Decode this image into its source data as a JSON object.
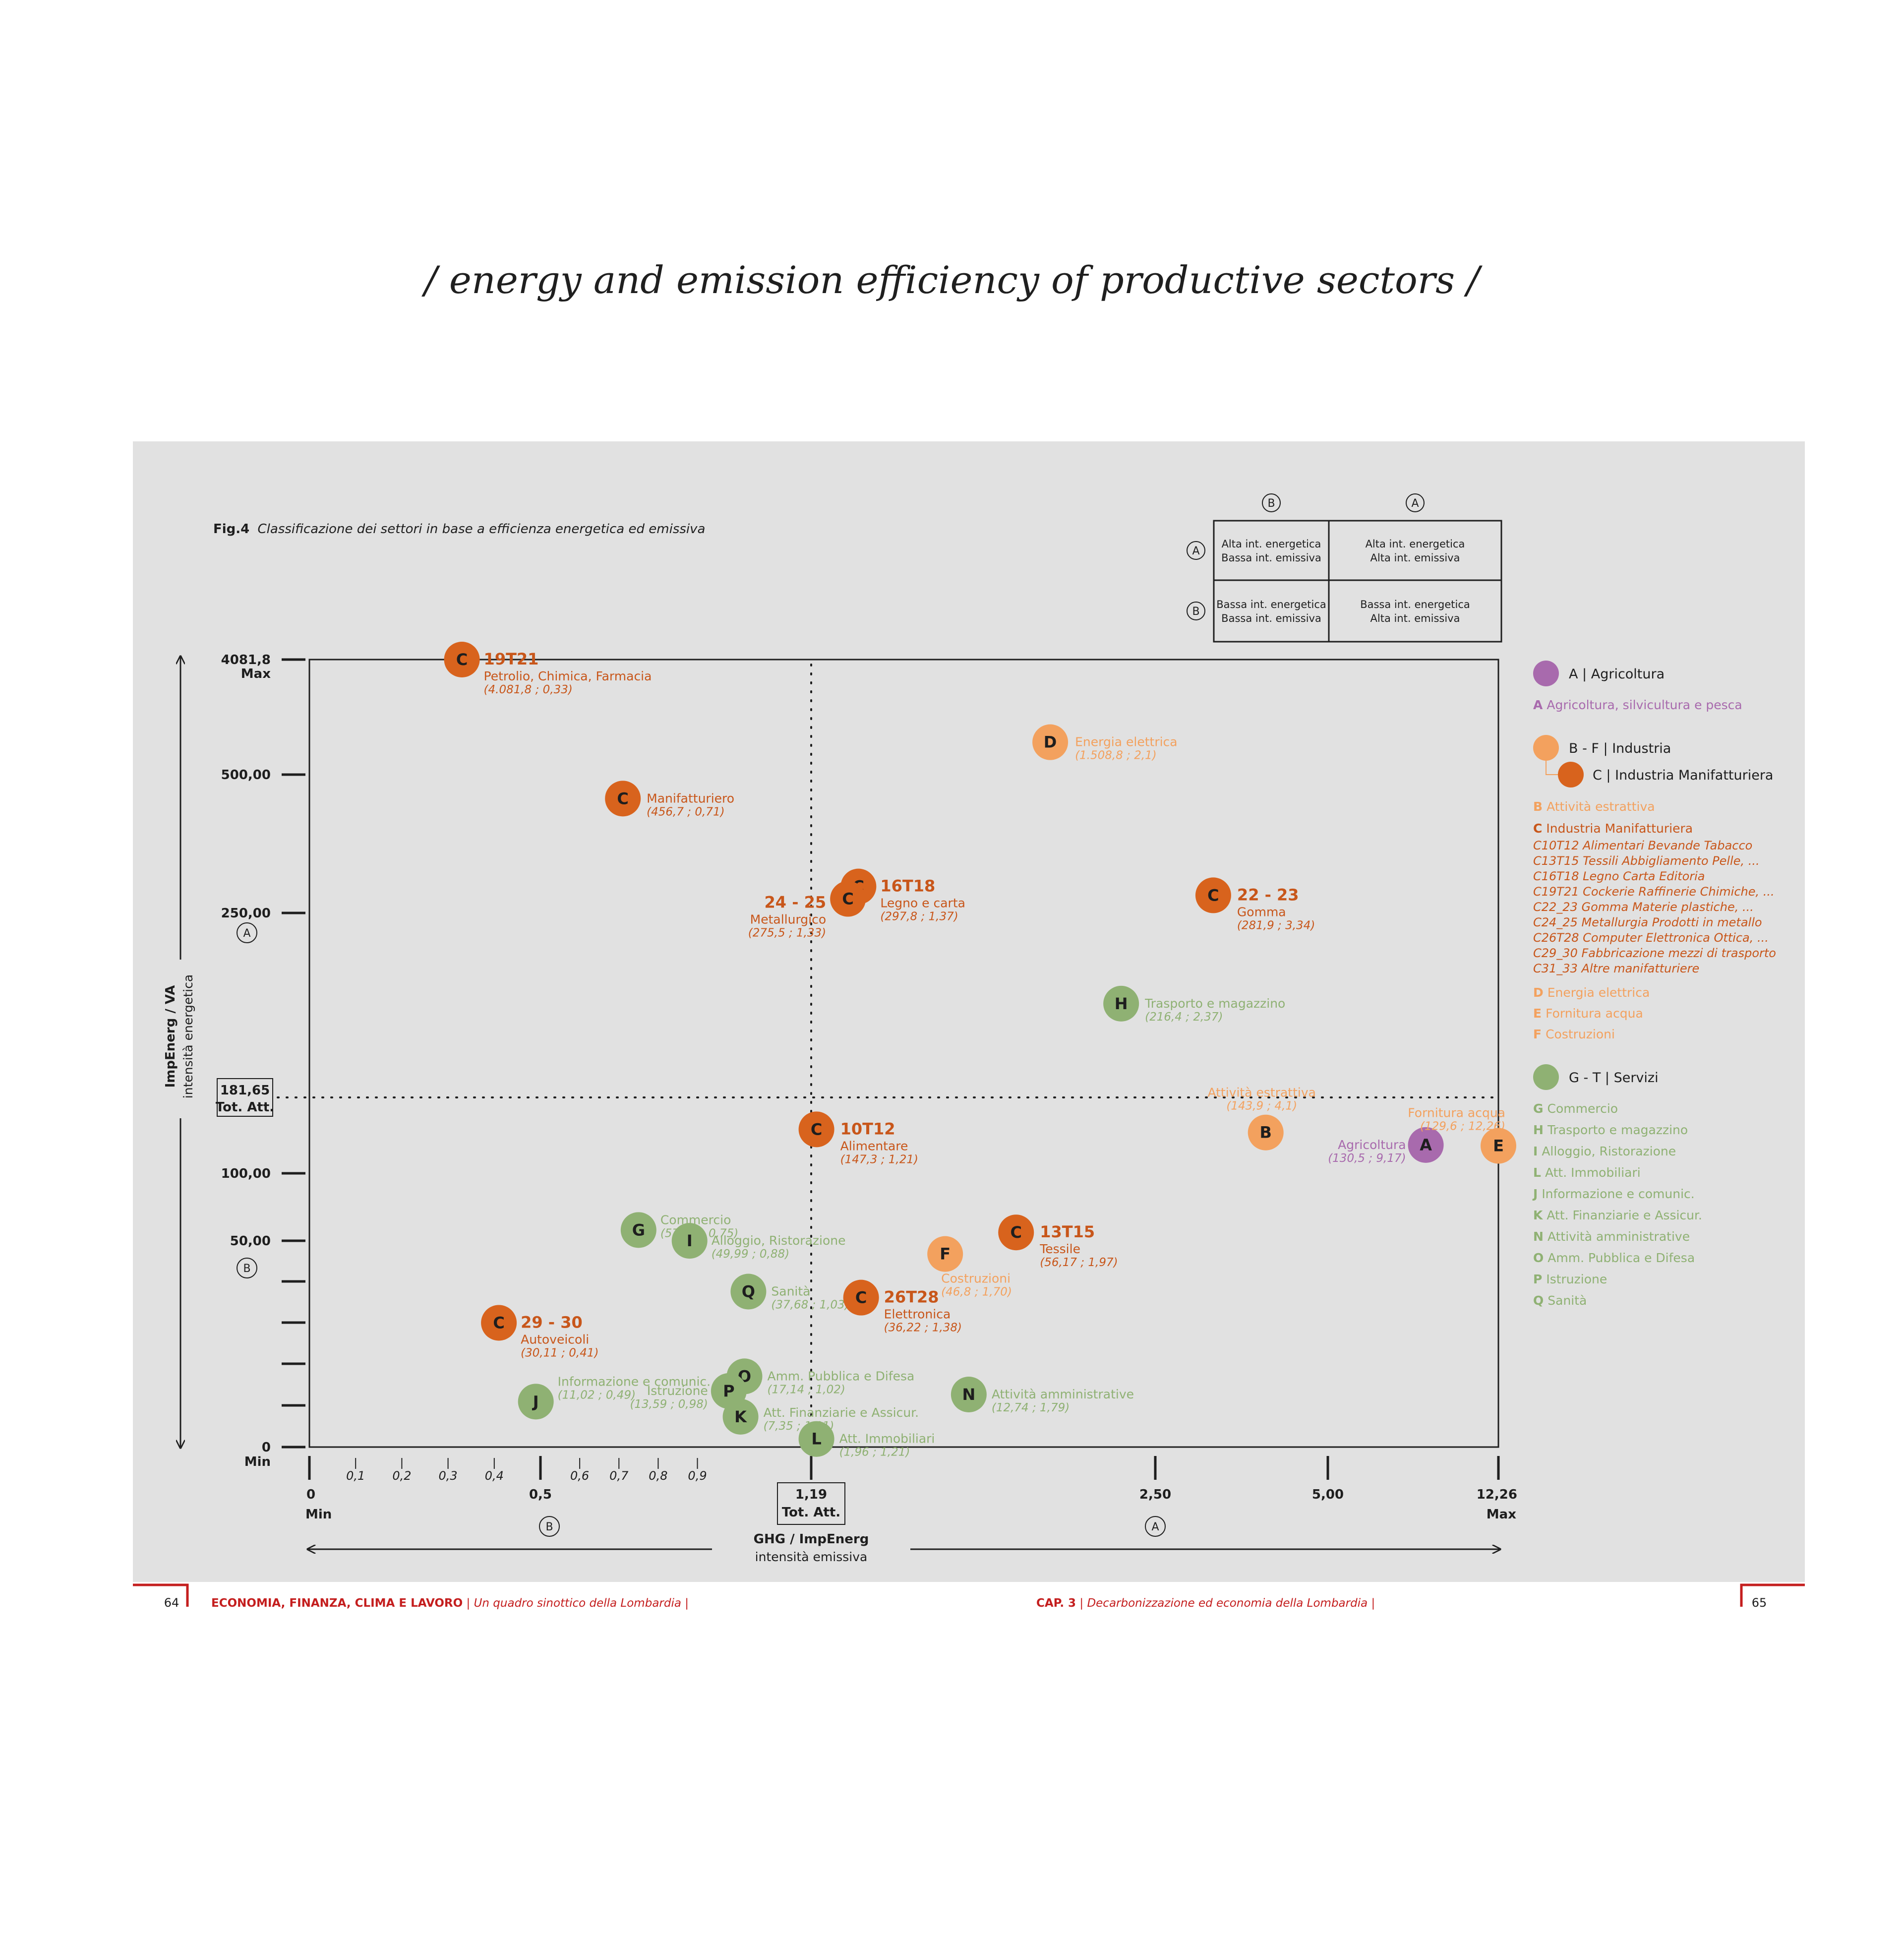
{
  "page": {
    "title": "/ energy and emission efficiency of productive sectors /"
  },
  "figure": {
    "label": "Fig.4",
    "caption": "Classificazione dei settori in base a efficienza energetica ed emissiva"
  },
  "matrix": {
    "col_headers": [
      "B",
      "A"
    ],
    "row_headers": [
      "A",
      "B"
    ],
    "cells": [
      [
        "Alta int. energetica\nBassa int. emissiva",
        "Alta int. energetica\nAlta int. emissiva"
      ],
      [
        "Bassa int. energetica\nBassa int. emissiva",
        "Bassa int. energetica\nAlta int. emissiva"
      ]
    ]
  },
  "y_axis": {
    "ticks": [
      "4081,8",
      "500,00",
      "250,00",
      "181,65",
      "100,00",
      "50,00",
      "0"
    ],
    "max_label": "Max",
    "min_label": "Min",
    "total_label": "Tot. Att.",
    "label": "ImpEnerg / VA",
    "sublabel": "intensità energetica",
    "zone_upper": "A",
    "zone_lower": "B"
  },
  "x_axis": {
    "major_ticks": [
      "0",
      "0,5",
      "1,19",
      "2,50",
      "5,00",
      "12,26"
    ],
    "minor_ticks": [
      "0,1",
      "0,2",
      "0,3",
      "0,4",
      "0,6",
      "0,7",
      "0,8",
      "0,9"
    ],
    "min_label": "Min",
    "max_label": "Max",
    "total_label": "Tot. Att.",
    "label": "GHG / ImpEnerg",
    "sublabel": "intensità emissiva",
    "zone_left": "B",
    "zone_right": "A"
  },
  "legend": {
    "agri_title": "A | Agricoltura",
    "agri_items": [
      {
        "code": "A",
        "text": "Agricoltura, silvicultura e pesca"
      }
    ],
    "ind_title": "B - F | Industria",
    "manuf_title": "C | Industria Manifatturiera",
    "ind_items_top": [
      {
        "code": "B",
        "text": "Attività estrattiva"
      },
      {
        "code": "C",
        "text": "Industria Manifatturiera"
      }
    ],
    "manuf_items": [
      "C10T12 Alimentari Bevande Tabacco",
      "C13T15 Tessili Abbigliamento Pelle, ...",
      "C16T18 Legno Carta Editoria",
      "C19T21 Cockerie Raffinerie Chimiche, ...",
      "C22_23 Gomma Materie plastiche, ...",
      "C24_25 Metallurgia Prodotti in metallo",
      "C26T28 Computer Elettronica Ottica, ...",
      "C29_30 Fabbricazione mezzi di trasporto",
      "C31_33 Altre manifatturiere"
    ],
    "ind_items_bottom": [
      {
        "code": "D",
        "text": "Energia elettrica"
      },
      {
        "code": "E",
        "text": "Fornitura acqua"
      },
      {
        "code": "F",
        "text": "Costruzioni"
      }
    ],
    "serv_title": "G - T | Servizi",
    "serv_items": [
      {
        "code": "G",
        "text": "Commercio"
      },
      {
        "code": "H",
        "text": "Trasporto e magazzino"
      },
      {
        "code": "I",
        "text": "Alloggio, Ristorazione"
      },
      {
        "code": "L",
        "text": "Att. Immobiliari"
      },
      {
        "code": "J",
        "text": "Informazione e comunic."
      },
      {
        "code": "K",
        "text": "Att. Finanziarie e Assicur."
      },
      {
        "code": "N",
        "text": "Attività amministrative"
      },
      {
        "code": "O",
        "text": "Amm. Pubblica e Difesa"
      },
      {
        "code": "P",
        "text": "Istruzione"
      },
      {
        "code": "Q",
        "text": "Sanità"
      }
    ]
  },
  "footer": {
    "page_left": "64",
    "left_bold": "ECONOMIA, FINANZA, CLIMA E LAVORO",
    "left_sep": " | ",
    "left_italic": "Un quadro sinottico della Lombardia",
    "left_end": " |",
    "right_bold": "CAP. 3",
    "right_sep": " | ",
    "right_italic": "Decarbonizzazione ed economia della Lombardia",
    "right_end": " |",
    "page_right": "65"
  },
  "colors": {
    "background": "#ffffff",
    "panel": "#e1e1e1",
    "agricoltura": "#a86aad",
    "industria": "#f3a15e",
    "manifatturiera": "#d8631d",
    "servizi": "#8fb173",
    "axis": "#1e1e1e",
    "footer_red": "#c41e1e"
  },
  "chart_data": {
    "type": "scatter",
    "title": "Classificazione dei settori in base a efficienza energetica ed emissiva",
    "xlabel": "GHG / ImpEnerg",
    "ylabel": "ImpEnerg / VA",
    "x_scale": "piecewise",
    "y_scale": "piecewise",
    "xlim": [
      0,
      12.26
    ],
    "ylim": [
      0,
      4081.8
    ],
    "x_reference": 1.19,
    "y_reference": 181.65,
    "series": [
      {
        "name": "A | Agricoltura",
        "color_key": "agricoltura"
      },
      {
        "name": "B - F | Industria",
        "color_key": "industria"
      },
      {
        "name": "C | Industria Manifatturiera",
        "color_key": "manifatturiera"
      },
      {
        "name": "G - T | Servizi",
        "color_key": "servizi"
      }
    ],
    "points": [
      {
        "code": "C",
        "group": "manifatturiera",
        "x": 0.33,
        "y": 4081.8,
        "title": "19T21",
        "name": "Petrolio, Chimica, Farmacia",
        "values": "(4.081,8 ; 0,33)"
      },
      {
        "code": "C",
        "group": "manifatturiera",
        "x": 0.71,
        "y": 456.7,
        "title": "",
        "name": "Manifatturiero",
        "values": "(456,7 ; 0,71)"
      },
      {
        "code": "C",
        "group": "manifatturiera",
        "x": 1.37,
        "y": 297.8,
        "title": "16T18",
        "name": "Legno e carta",
        "values": "(297,8 ; 1,37)"
      },
      {
        "code": "C",
        "group": "manifatturiera",
        "x": 1.33,
        "y": 275.5,
        "title": "24 - 25",
        "name": "Metallurgico",
        "values": "(275,5 ; 1,33)"
      },
      {
        "code": "C",
        "group": "manifatturiera",
        "x": 3.34,
        "y": 281.9,
        "title": "22 - 23",
        "name": "Gomma",
        "values": "(281,9 ; 3,34)"
      },
      {
        "code": "D",
        "group": "industria",
        "x": 2.1,
        "y": 1508.8,
        "title": "",
        "name": "Energia elettrica",
        "values": "(1.508,8 ; 2,1)"
      },
      {
        "code": "H",
        "group": "servizi",
        "x": 2.37,
        "y": 216.4,
        "title": "",
        "name": "Trasporto e magazzino",
        "values": "(216,4 ; 2,37)"
      },
      {
        "code": "C",
        "group": "manifatturiera",
        "x": 1.21,
        "y": 147.3,
        "title": "10T12",
        "name": "Alimentare",
        "values": "(147,3 ; 1,21)"
      },
      {
        "code": "B",
        "group": "industria",
        "x": 4.1,
        "y": 143.9,
        "title": "",
        "name": "Attività estrattiva",
        "values": "(143,9 ; 4,1)"
      },
      {
        "code": "A",
        "group": "agricoltura",
        "x": 9.17,
        "y": 130.5,
        "title": "",
        "name": "Agricoltura",
        "values": "(130,5 ; 9,17)"
      },
      {
        "code": "E",
        "group": "industria",
        "x": 12.26,
        "y": 129.6,
        "title": "",
        "name": "Fornitura acqua",
        "values": "(129,6 ; 12,26)"
      },
      {
        "code": "G",
        "group": "servizi",
        "x": 0.75,
        "y": 57.96,
        "title": "",
        "name": "Commercio",
        "values": "(57,96 ; 0,75)"
      },
      {
        "code": "I",
        "group": "servizi",
        "x": 0.88,
        "y": 49.99,
        "title": "",
        "name": "Alloggio, Ristorazione",
        "values": "(49,99 ; 0,88)"
      },
      {
        "code": "C",
        "group": "manifatturiera",
        "x": 1.97,
        "y": 56.17,
        "title": "13T15",
        "name": "Tessile",
        "values": "(56,17 ; 1,97)"
      },
      {
        "code": "F",
        "group": "industria",
        "x": 1.7,
        "y": 46.8,
        "title": "",
        "name": "Costruzioni",
        "values": "(46,8 ; 1,70)"
      },
      {
        "code": "Q",
        "group": "servizi",
        "x": 1.03,
        "y": 37.68,
        "title": "",
        "name": "Sanità",
        "values": "(37,68 ; 1,03)"
      },
      {
        "code": "C",
        "group": "manifatturiera",
        "x": 1.38,
        "y": 36.22,
        "title": "26T28",
        "name": "Elettronica",
        "values": "(36,22 ; 1,38)"
      },
      {
        "code": "C",
        "group": "manifatturiera",
        "x": 0.41,
        "y": 30.11,
        "title": "29 - 30",
        "name": "Autoveicoli",
        "values": "(30,11 ; 0,41)"
      },
      {
        "code": "J",
        "group": "servizi",
        "x": 0.49,
        "y": 11.02,
        "title": "",
        "name": "Informazione e comunic.",
        "values": "(11,02 ; 0,49)"
      },
      {
        "code": "O",
        "group": "servizi",
        "x": 1.02,
        "y": 17.14,
        "title": "",
        "name": "Amm. Pubblica e Difesa",
        "values": "(17,14 ; 1,02)"
      },
      {
        "code": "P",
        "group": "servizi",
        "x": 0.98,
        "y": 13.59,
        "title": "",
        "name": "Istruzione",
        "values": "(13,59 ; 0,98)"
      },
      {
        "code": "K",
        "group": "servizi",
        "x": 1.01,
        "y": 7.35,
        "title": "",
        "name": "Att. Finanziarie e Assicur.",
        "values": "(7,35 ; 1,01)"
      },
      {
        "code": "N",
        "group": "servizi",
        "x": 1.79,
        "y": 12.74,
        "title": "",
        "name": "Attività amministrative",
        "values": "(12,74 ; 1,79)"
      },
      {
        "code": "L",
        "group": "servizi",
        "x": 1.21,
        "y": 1.96,
        "title": "",
        "name": "Att. Immobiliari",
        "values": "(1,96 ; 1,21)"
      }
    ]
  }
}
